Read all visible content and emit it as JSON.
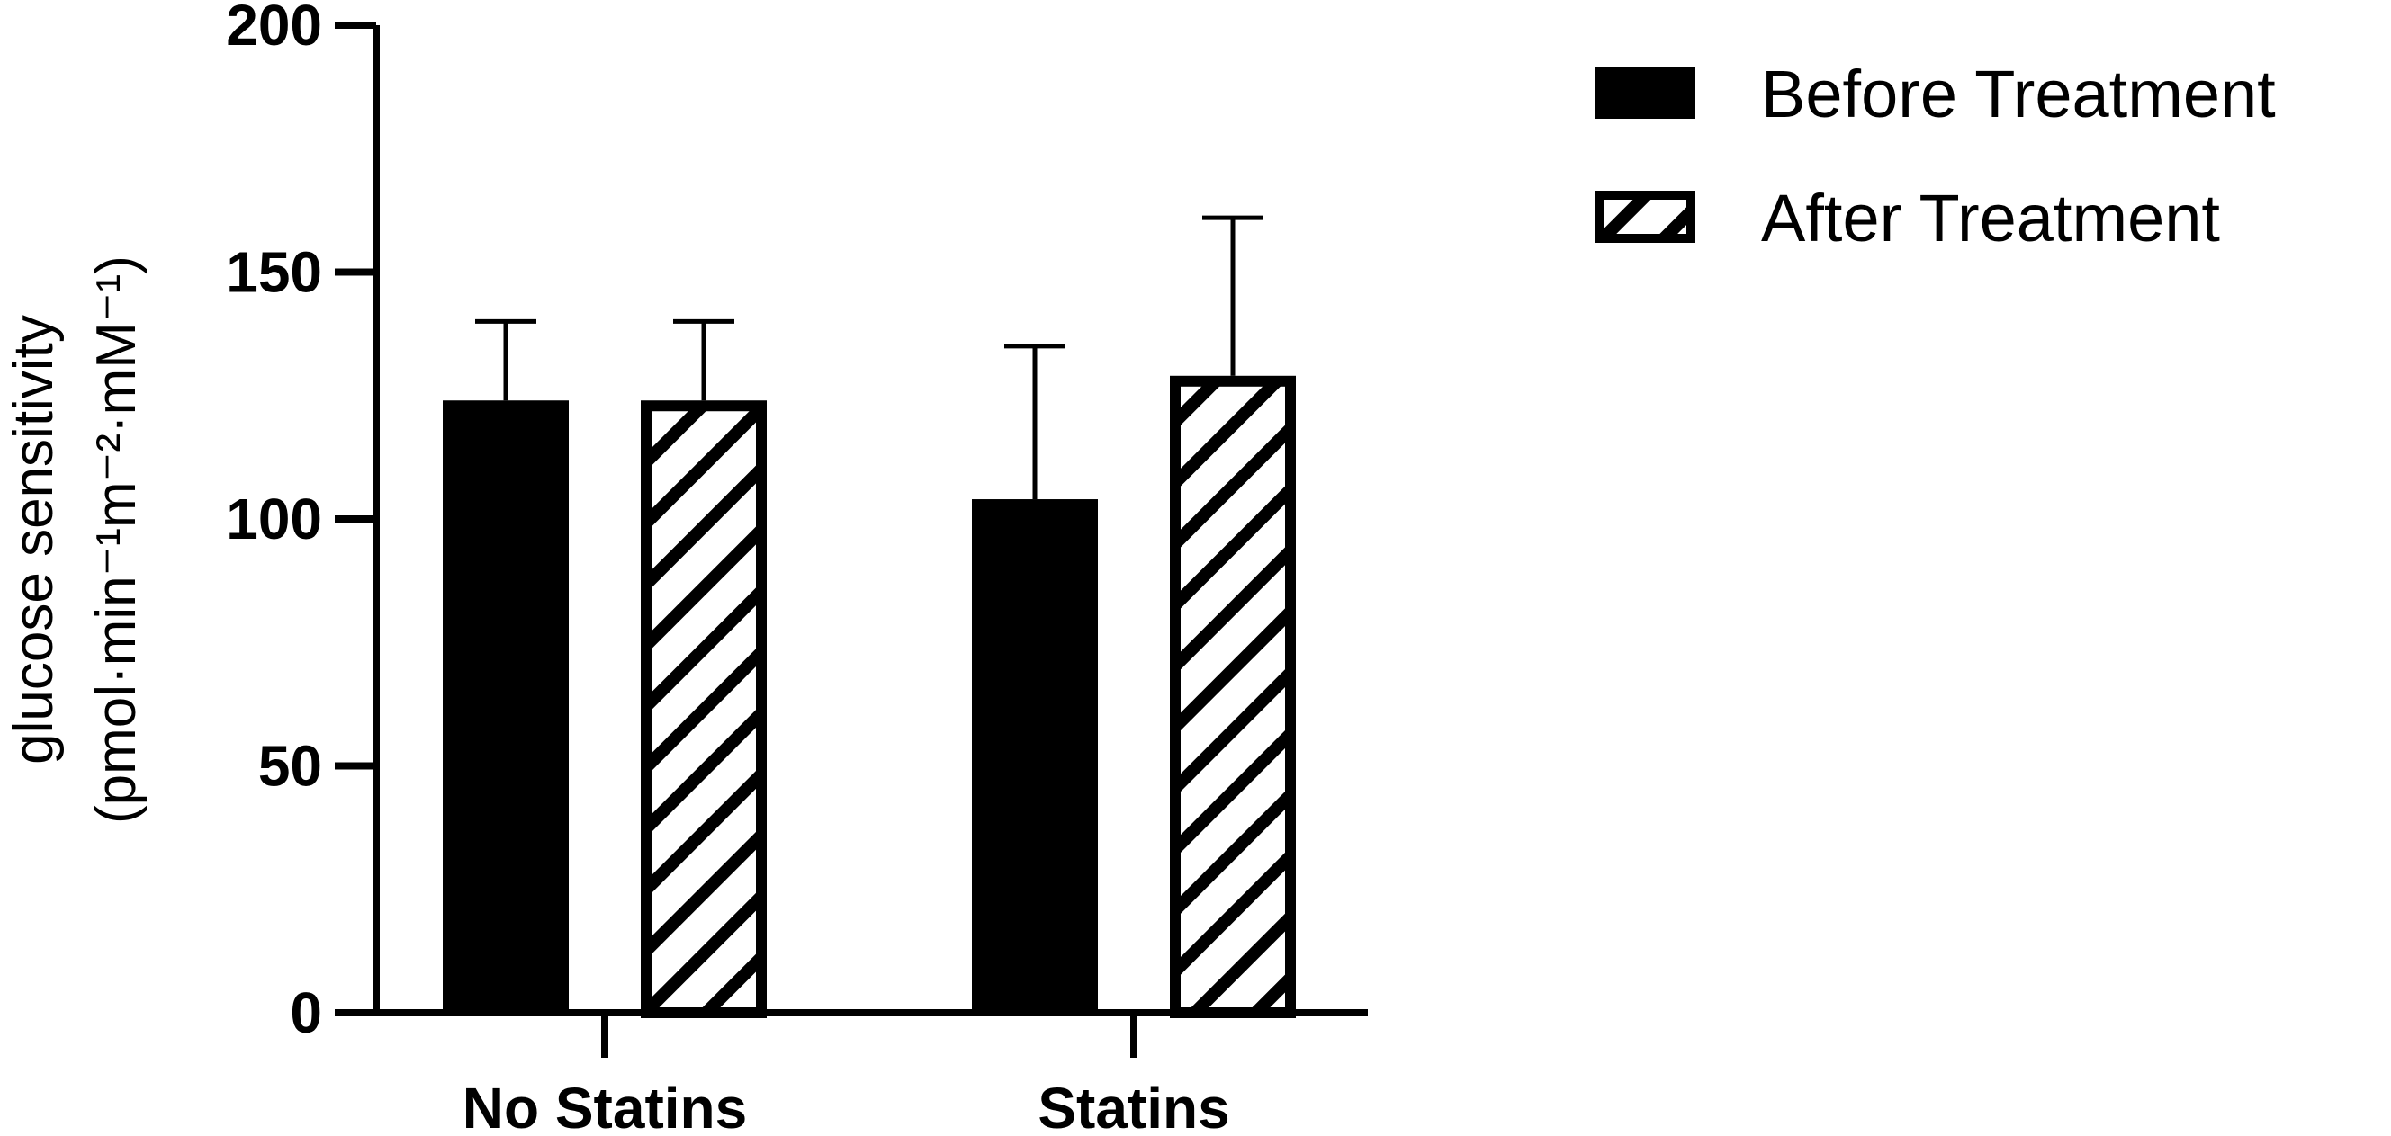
{
  "chart_data": {
    "type": "bar",
    "categories": [
      "No Statins",
      "Statins"
    ],
    "series": [
      {
        "name": "Before Treatment",
        "values": [
          124,
          104
        ],
        "error_upper": [
          140,
          135
        ],
        "fill": "solid",
        "color": "#000000"
      },
      {
        "name": "After Treatment",
        "values": [
          124,
          129
        ],
        "error_upper": [
          140,
          161
        ],
        "fill": "hatched",
        "color": "#000000"
      }
    ],
    "ylabel_line1": "glucose sensitivity",
    "ylabel_line2": "(pmol·min⁻¹m⁻²·mM⁻¹)",
    "ylim": [
      0,
      200
    ],
    "yticks": [
      "0",
      "50",
      "100",
      "150",
      "200"
    ],
    "grid": false,
    "legend_position": "top-right"
  }
}
